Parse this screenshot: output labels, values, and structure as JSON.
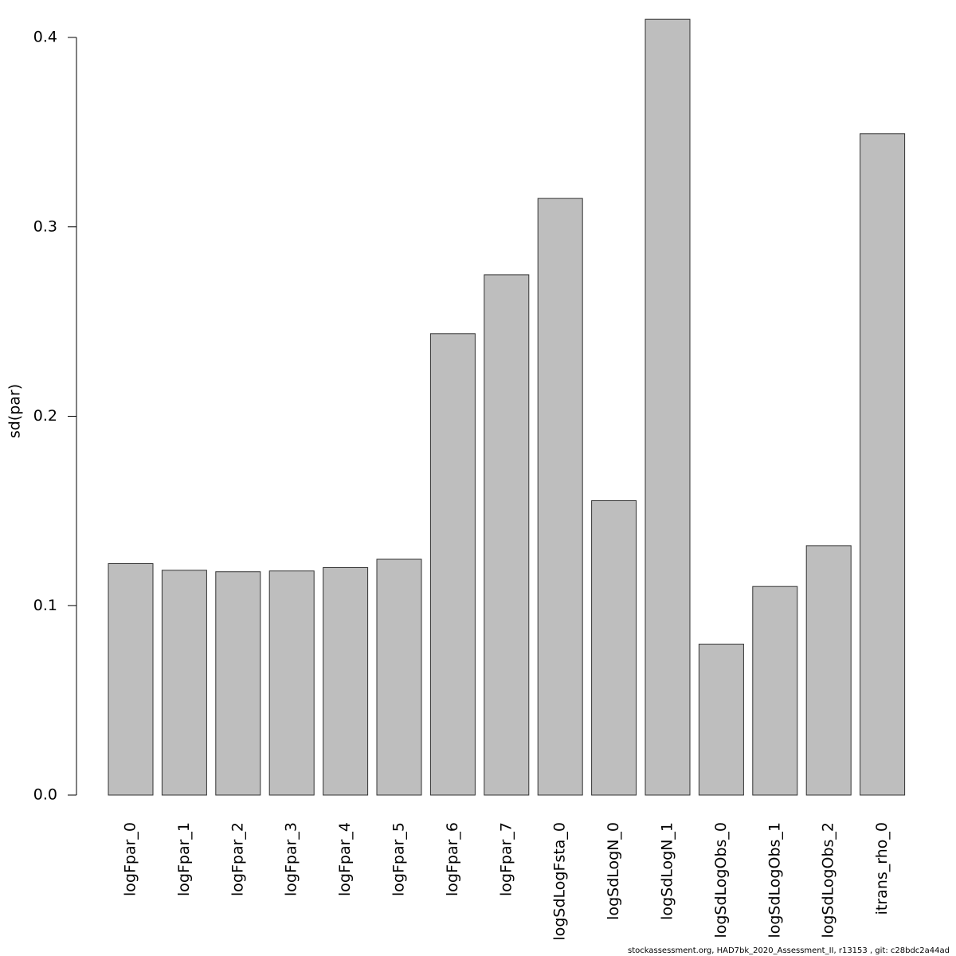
{
  "chart_data": {
    "type": "bar",
    "title": "",
    "xlabel": "",
    "ylabel": "sd(par)",
    "ylim": [
      0,
      0.41
    ],
    "yticks": [
      0.0,
      0.1,
      0.2,
      0.3,
      0.4
    ],
    "ytick_labels": [
      "0.0",
      "0.1",
      "0.2",
      "0.3",
      "0.4"
    ],
    "categories": [
      "logFpar_0",
      "logFpar_1",
      "logFpar_2",
      "logFpar_3",
      "logFpar_4",
      "logFpar_5",
      "logFpar_6",
      "logFpar_7",
      "logSdLogFsta_0",
      "logSdLogN_0",
      "logSdLogN_1",
      "logSdLogObs_0",
      "logSdLogObs_1",
      "logSdLogObs_2",
      "itrans_rho_0"
    ],
    "values": [
      0.1222,
      0.1187,
      0.1179,
      0.1183,
      0.1201,
      0.1245,
      0.2436,
      0.2747,
      0.315,
      0.1554,
      0.4096,
      0.0797,
      0.1101,
      0.1317,
      0.3492
    ],
    "bar_color": "#bebebe",
    "bar_edge_color": "#333333",
    "grid": false,
    "legend": "none"
  },
  "footer": "stockassessment.org, HAD7bk_2020_Assessment_II, r13153 , git: c28bdc2a44ad"
}
